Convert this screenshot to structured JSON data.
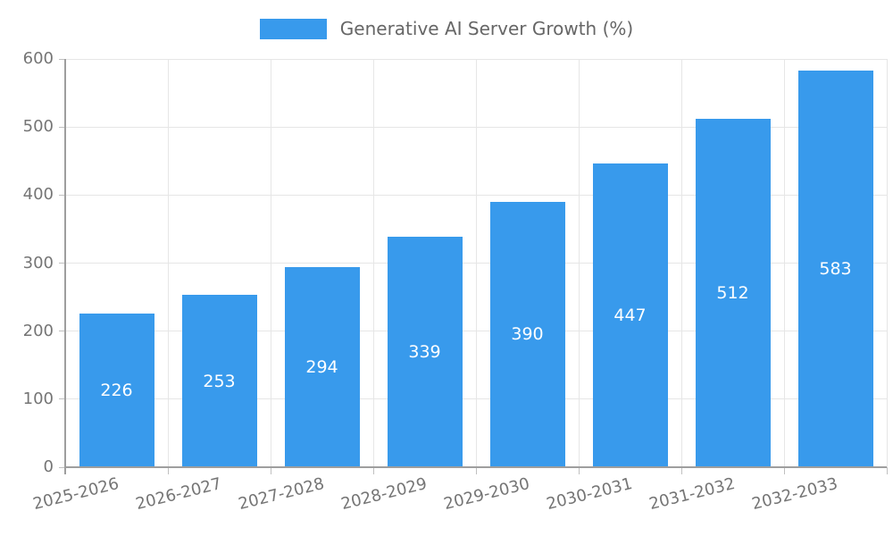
{
  "legend": {
    "label": "Generative AI Server Growth (%)"
  },
  "chart_data": {
    "type": "bar",
    "title": "",
    "series_name": "Generative AI Server Growth (%)",
    "categories": [
      "2025-2026",
      "2026-2027",
      "2027-2028",
      "2028-2029",
      "2029-2030",
      "2030-2031",
      "2031-2032",
      "2032-2033"
    ],
    "values": [
      226,
      253,
      294,
      339,
      390,
      447,
      512,
      583
    ],
    "value_labels": [
      "226",
      "253",
      "294",
      "339",
      "390",
      "447",
      "512",
      "583"
    ],
    "xlabel": "",
    "ylabel": "",
    "ylim": [
      0,
      600
    ],
    "yticks": [
      0,
      100,
      200,
      300,
      400,
      500,
      600
    ],
    "grid": true,
    "legend_position": "top-center",
    "colors": {
      "bar": "#389AEC",
      "value_label": "#FFFFFF",
      "axis": "#9E9E9E",
      "tick": "#C0C0C0",
      "grid": "#E6E6E6",
      "tick_label": "#757575",
      "legend_text": "#666666",
      "background": "#FFFFFF"
    }
  }
}
